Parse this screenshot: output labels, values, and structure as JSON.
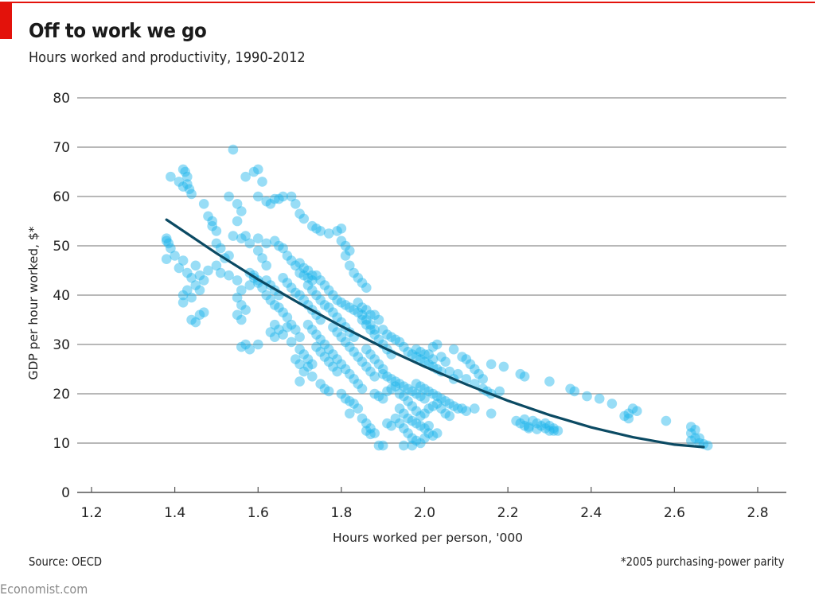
{
  "header": {
    "title": "Off to work we go",
    "subtitle": "Hours worked and productivity, 1990-2012"
  },
  "footer": {
    "source": "Source: OECD",
    "footnote": "*2005 purchasing-power parity",
    "brand": "Economist.com"
  },
  "colors": {
    "accent": "#e3120b",
    "points": "#1ab3ec",
    "trend": "#0b4a63",
    "grid": "#b8b8b8"
  },
  "chart_data": {
    "type": "scatter",
    "title": "Off to work we go",
    "subtitle": "Hours worked and productivity, 1990-2012",
    "xlabel": "Hours worked per person, '000",
    "ylabel": "GDP per hour worked, $*",
    "xlim": [
      1.2,
      2.8
    ],
    "ylim": [
      0,
      80
    ],
    "xticks": [
      "1.2",
      "1.4",
      "1.6",
      "1.8",
      "2.0",
      "2.2",
      "2.4",
      "2.6",
      "2.8"
    ],
    "yticks": [
      "0",
      "10",
      "20",
      "30",
      "40",
      "50",
      "60",
      "70",
      "80"
    ],
    "grid": "horizontal",
    "legend": "none",
    "trendline": {
      "type": "quadratic",
      "x_range": [
        1.38,
        2.67
      ],
      "points": [
        [
          1.38,
          55.3
        ],
        [
          1.5,
          48.5
        ],
        [
          1.6,
          43.2
        ],
        [
          1.7,
          38.3
        ],
        [
          1.8,
          33.7
        ],
        [
          1.9,
          29.4
        ],
        [
          2.0,
          25.5
        ],
        [
          2.1,
          21.9
        ],
        [
          2.2,
          18.6
        ],
        [
          2.3,
          15.7
        ],
        [
          2.4,
          13.2
        ],
        [
          2.5,
          11.2
        ],
        [
          2.6,
          9.7
        ],
        [
          2.67,
          9.2
        ]
      ]
    },
    "points": [
      [
        1.38,
        51.5
      ],
      [
        1.38,
        51
      ],
      [
        1.385,
        50.5
      ],
      [
        1.39,
        49.5
      ],
      [
        1.38,
        47.3
      ],
      [
        1.4,
        48
      ],
      [
        1.42,
        47
      ],
      [
        1.41,
        45.5
      ],
      [
        1.43,
        44.5
      ],
      [
        1.44,
        43.5
      ],
      [
        1.45,
        42
      ],
      [
        1.43,
        41
      ],
      [
        1.42,
        40
      ],
      [
        1.44,
        39.5
      ],
      [
        1.42,
        38.5
      ],
      [
        1.46,
        41
      ],
      [
        1.47,
        43
      ],
      [
        1.45,
        46
      ],
      [
        1.46,
        44
      ],
      [
        1.48,
        45
      ],
      [
        1.44,
        35
      ],
      [
        1.45,
        34.5
      ],
      [
        1.46,
        36
      ],
      [
        1.47,
        36.5
      ],
      [
        1.39,
        64
      ],
      [
        1.41,
        63
      ],
      [
        1.42,
        62
      ],
      [
        1.43,
        62.5
      ],
      [
        1.42,
        65.5
      ],
      [
        1.425,
        65
      ],
      [
        1.43,
        64
      ],
      [
        1.435,
        61.5
      ],
      [
        1.44,
        60.5
      ],
      [
        1.47,
        58.5
      ],
      [
        1.48,
        56
      ],
      [
        1.49,
        55
      ],
      [
        1.5,
        53
      ],
      [
        1.49,
        54
      ],
      [
        1.5,
        50.5
      ],
      [
        1.51,
        49.5
      ],
      [
        1.53,
        48
      ],
      [
        1.52,
        47.5
      ],
      [
        1.5,
        46
      ],
      [
        1.51,
        44.5
      ],
      [
        1.53,
        44
      ],
      [
        1.55,
        43
      ],
      [
        1.54,
        69.5
      ],
      [
        1.53,
        60
      ],
      [
        1.55,
        58.5
      ],
      [
        1.56,
        57
      ],
      [
        1.55,
        55
      ],
      [
        1.54,
        52
      ],
      [
        1.56,
        51.5
      ],
      [
        1.57,
        52
      ],
      [
        1.58,
        50.5
      ],
      [
        1.6,
        49
      ],
      [
        1.61,
        47.5
      ],
      [
        1.62,
        46
      ],
      [
        1.59,
        44
      ],
      [
        1.6,
        43
      ],
      [
        1.58,
        42
      ],
      [
        1.56,
        41
      ],
      [
        1.55,
        39.5
      ],
      [
        1.56,
        38
      ],
      [
        1.57,
        37
      ],
      [
        1.55,
        36
      ],
      [
        1.56,
        35
      ],
      [
        1.57,
        30
      ],
      [
        1.56,
        29.5
      ],
      [
        1.58,
        29
      ],
      [
        1.6,
        30
      ],
      [
        1.57,
        64
      ],
      [
        1.59,
        65
      ],
      [
        1.6,
        65.5
      ],
      [
        1.61,
        63
      ],
      [
        1.6,
        60
      ],
      [
        1.62,
        59
      ],
      [
        1.63,
        58.5
      ],
      [
        1.64,
        59.5
      ],
      [
        1.66,
        60
      ],
      [
        1.65,
        59.5
      ],
      [
        1.68,
        60
      ],
      [
        1.69,
        58.5
      ],
      [
        1.7,
        56.5
      ],
      [
        1.71,
        55.5
      ],
      [
        1.73,
        54
      ],
      [
        1.74,
        53.5
      ],
      [
        1.75,
        53
      ],
      [
        1.77,
        52.5
      ],
      [
        1.79,
        53
      ],
      [
        1.8,
        53.5
      ],
      [
        1.8,
        51
      ],
      [
        1.81,
        50
      ],
      [
        1.82,
        49
      ],
      [
        1.81,
        48
      ],
      [
        1.82,
        46
      ],
      [
        1.83,
        44.5
      ],
      [
        1.84,
        43.5
      ],
      [
        1.85,
        42.5
      ],
      [
        1.86,
        41.5
      ],
      [
        1.6,
        51.5
      ],
      [
        1.62,
        50.5
      ],
      [
        1.64,
        51
      ],
      [
        1.65,
        50
      ],
      [
        1.66,
        49.5
      ],
      [
        1.67,
        48
      ],
      [
        1.68,
        47
      ],
      [
        1.69,
        46
      ],
      [
        1.7,
        46.5
      ],
      [
        1.71,
        45.5
      ],
      [
        1.72,
        45
      ],
      [
        1.73,
        44
      ],
      [
        1.58,
        44.5
      ],
      [
        1.59,
        43.5
      ],
      [
        1.6,
        42.5
      ],
      [
        1.61,
        41.5
      ],
      [
        1.62,
        43
      ],
      [
        1.63,
        42
      ],
      [
        1.64,
        41
      ],
      [
        1.65,
        40
      ],
      [
        1.62,
        40
      ],
      [
        1.63,
        39
      ],
      [
        1.64,
        38
      ],
      [
        1.65,
        37.5
      ],
      [
        1.66,
        36.5
      ],
      [
        1.67,
        35.5
      ],
      [
        1.68,
        34
      ],
      [
        1.64,
        34
      ],
      [
        1.65,
        33
      ],
      [
        1.63,
        32.5
      ],
      [
        1.64,
        31.5
      ],
      [
        1.66,
        32
      ],
      [
        1.67,
        33.5
      ],
      [
        1.69,
        33
      ],
      [
        1.7,
        31.5
      ],
      [
        1.68,
        30.5
      ],
      [
        1.7,
        29
      ],
      [
        1.71,
        28
      ],
      [
        1.69,
        27
      ],
      [
        1.7,
        26
      ],
      [
        1.72,
        25.5
      ],
      [
        1.71,
        24.5
      ],
      [
        1.73,
        23.5
      ],
      [
        1.7,
        22.5
      ],
      [
        1.66,
        43.5
      ],
      [
        1.67,
        42.5
      ],
      [
        1.68,
        41.5
      ],
      [
        1.69,
        40.5
      ],
      [
        1.7,
        40
      ],
      [
        1.71,
        39
      ],
      [
        1.72,
        38
      ],
      [
        1.73,
        37
      ],
      [
        1.74,
        36
      ],
      [
        1.75,
        35
      ],
      [
        1.72,
        42
      ],
      [
        1.73,
        41
      ],
      [
        1.74,
        40
      ],
      [
        1.75,
        39
      ],
      [
        1.76,
        38
      ],
      [
        1.77,
        37.5
      ],
      [
        1.78,
        36.5
      ],
      [
        1.79,
        35.5
      ],
      [
        1.8,
        34.5
      ],
      [
        1.81,
        33.5
      ],
      [
        1.82,
        32.5
      ],
      [
        1.83,
        31.5
      ],
      [
        1.7,
        44.5
      ],
      [
        1.71,
        44
      ],
      [
        1.72,
        43.5
      ],
      [
        1.73,
        43
      ],
      [
        1.74,
        44
      ],
      [
        1.75,
        43
      ],
      [
        1.76,
        42
      ],
      [
        1.77,
        41
      ],
      [
        1.78,
        40
      ],
      [
        1.79,
        39
      ],
      [
        1.8,
        38.5
      ],
      [
        1.81,
        38
      ],
      [
        1.82,
        37.5
      ],
      [
        1.83,
        37
      ],
      [
        1.84,
        36.5
      ],
      [
        1.85,
        36
      ],
      [
        1.86,
        35
      ],
      [
        1.87,
        34
      ],
      [
        1.88,
        33
      ],
      [
        1.84,
        38.5
      ],
      [
        1.85,
        37.5
      ],
      [
        1.86,
        37
      ],
      [
        1.87,
        36
      ],
      [
        1.72,
        34
      ],
      [
        1.73,
        33
      ],
      [
        1.74,
        32
      ],
      [
        1.75,
        31
      ],
      [
        1.76,
        30
      ],
      [
        1.77,
        29
      ],
      [
        1.74,
        29.5
      ],
      [
        1.75,
        28.5
      ],
      [
        1.76,
        27.5
      ],
      [
        1.77,
        26.5
      ],
      [
        1.78,
        25.5
      ],
      [
        1.79,
        24.5
      ],
      [
        1.75,
        22
      ],
      [
        1.76,
        21
      ],
      [
        1.77,
        20.5
      ],
      [
        1.73,
        26
      ],
      [
        1.72,
        27
      ],
      [
        1.78,
        28
      ],
      [
        1.79,
        27
      ],
      [
        1.8,
        26
      ],
      [
        1.81,
        25
      ],
      [
        1.82,
        24
      ],
      [
        1.83,
        23
      ],
      [
        1.84,
        22
      ],
      [
        1.85,
        21
      ],
      [
        1.78,
        33.5
      ],
      [
        1.79,
        32.5
      ],
      [
        1.8,
        31.5
      ],
      [
        1.81,
        30.5
      ],
      [
        1.82,
        29.5
      ],
      [
        1.83,
        28.5
      ],
      [
        1.84,
        27.5
      ],
      [
        1.85,
        26.5
      ],
      [
        1.86,
        25.5
      ],
      [
        1.87,
        24.5
      ],
      [
        1.88,
        23.5
      ],
      [
        1.86,
        29
      ],
      [
        1.87,
        28
      ],
      [
        1.88,
        27
      ],
      [
        1.89,
        26
      ],
      [
        1.9,
        25
      ],
      [
        1.85,
        35
      ],
      [
        1.86,
        34
      ],
      [
        1.87,
        33
      ],
      [
        1.88,
        32
      ],
      [
        1.89,
        31
      ],
      [
        1.9,
        30
      ],
      [
        1.91,
        29
      ],
      [
        1.92,
        28
      ],
      [
        1.89,
        35
      ],
      [
        1.88,
        36
      ],
      [
        1.9,
        33
      ],
      [
        1.91,
        32
      ],
      [
        1.92,
        31.5
      ],
      [
        1.93,
        31
      ],
      [
        1.94,
        30.5
      ],
      [
        1.95,
        29.5
      ],
      [
        1.96,
        28.5
      ],
      [
        1.97,
        28
      ],
      [
        1.98,
        27.5
      ],
      [
        1.99,
        27
      ],
      [
        2.0,
        26.5
      ],
      [
        2.01,
        26
      ],
      [
        2.02,
        25.5
      ],
      [
        2.03,
        25
      ],
      [
        2.04,
        24.5
      ],
      [
        1.8,
        20
      ],
      [
        1.81,
        19
      ],
      [
        1.82,
        18.5
      ],
      [
        1.83,
        18
      ],
      [
        1.84,
        17
      ],
      [
        1.82,
        16
      ],
      [
        1.85,
        15
      ],
      [
        1.86,
        14
      ],
      [
        1.87,
        13
      ],
      [
        1.88,
        12
      ],
      [
        1.86,
        12.5
      ],
      [
        1.87,
        11.8
      ],
      [
        1.89,
        9.5
      ],
      [
        1.9,
        9.5
      ],
      [
        1.91,
        14
      ],
      [
        1.92,
        13.5
      ],
      [
        1.93,
        15
      ],
      [
        1.94,
        14
      ],
      [
        1.95,
        13
      ],
      [
        1.96,
        12
      ],
      [
        1.97,
        11
      ],
      [
        1.98,
        10.5
      ],
      [
        1.95,
        9.5
      ],
      [
        1.97,
        9.5
      ],
      [
        1.99,
        10
      ],
      [
        2.0,
        11
      ],
      [
        2.01,
        12
      ],
      [
        2.02,
        11.5
      ],
      [
        2.03,
        12
      ],
      [
        1.88,
        20
      ],
      [
        1.89,
        19.5
      ],
      [
        1.9,
        19
      ],
      [
        1.91,
        20.5
      ],
      [
        1.92,
        21
      ],
      [
        1.93,
        21.5
      ],
      [
        1.94,
        20
      ],
      [
        1.95,
        19.5
      ],
      [
        1.96,
        18.5
      ],
      [
        1.97,
        17.5
      ],
      [
        1.98,
        16.5
      ],
      [
        1.99,
        15.5
      ],
      [
        2.0,
        16
      ],
      [
        2.01,
        17
      ],
      [
        2.02,
        17.5
      ],
      [
        2.03,
        18
      ],
      [
        2.04,
        17
      ],
      [
        2.05,
        16
      ],
      [
        2.06,
        15.5
      ],
      [
        1.94,
        17
      ],
      [
        1.95,
        16
      ],
      [
        1.96,
        15
      ],
      [
        1.97,
        14.5
      ],
      [
        1.98,
        14
      ],
      [
        1.99,
        13.5
      ],
      [
        2.0,
        13
      ],
      [
        2.01,
        13.5
      ],
      [
        1.9,
        24
      ],
      [
        1.91,
        23.5
      ],
      [
        1.92,
        23
      ],
      [
        1.93,
        22.5
      ],
      [
        1.94,
        22
      ],
      [
        1.95,
        21.5
      ],
      [
        1.96,
        21
      ],
      [
        1.97,
        20.5
      ],
      [
        1.98,
        20
      ],
      [
        1.99,
        19.5
      ],
      [
        2.0,
        19
      ],
      [
        1.98,
        22
      ],
      [
        1.99,
        21.5
      ],
      [
        2.0,
        21
      ],
      [
        2.01,
        20.5
      ],
      [
        2.02,
        20
      ],
      [
        2.03,
        19.5
      ],
      [
        2.04,
        19
      ],
      [
        2.05,
        18.5
      ],
      [
        2.06,
        18
      ],
      [
        2.07,
        17.5
      ],
      [
        2.08,
        17
      ],
      [
        1.98,
        29
      ],
      [
        1.99,
        28.5
      ],
      [
        2.0,
        28
      ],
      [
        2.01,
        28
      ],
      [
        2.02,
        29.5
      ],
      [
        2.03,
        30
      ],
      [
        2.02,
        27
      ],
      [
        2.04,
        27.5
      ],
      [
        2.05,
        26.5
      ],
      [
        2.06,
        24.5
      ],
      [
        2.07,
        23
      ],
      [
        2.08,
        24
      ],
      [
        2.07,
        29
      ],
      [
        2.09,
        27.5
      ],
      [
        2.1,
        27
      ],
      [
        2.11,
        26
      ],
      [
        2.12,
        25
      ],
      [
        2.13,
        24
      ],
      [
        2.14,
        23
      ],
      [
        2.12,
        22
      ],
      [
        2.1,
        23
      ],
      [
        2.09,
        17
      ],
      [
        2.1,
        16.5
      ],
      [
        2.12,
        17
      ],
      [
        2.14,
        21
      ],
      [
        2.15,
        20.5
      ],
      [
        2.16,
        20
      ],
      [
        2.18,
        20.5
      ],
      [
        2.16,
        16
      ],
      [
        2.16,
        26
      ],
      [
        2.19,
        25.5
      ],
      [
        2.23,
        24
      ],
      [
        2.24,
        23.5
      ],
      [
        2.3,
        22.5
      ],
      [
        2.35,
        21
      ],
      [
        2.36,
        20.5
      ],
      [
        2.39,
        19.5
      ],
      [
        2.42,
        19
      ],
      [
        2.45,
        18
      ],
      [
        2.48,
        15.5
      ],
      [
        2.49,
        16
      ],
      [
        2.5,
        17
      ],
      [
        2.51,
        16.5
      ],
      [
        2.49,
        15
      ],
      [
        2.58,
        14.5
      ],
      [
        2.22,
        14.5
      ],
      [
        2.23,
        14
      ],
      [
        2.24,
        13.5
      ],
      [
        2.25,
        13
      ],
      [
        2.24,
        14.8
      ],
      [
        2.26,
        14.5
      ],
      [
        2.27,
        14
      ],
      [
        2.28,
        13.5
      ],
      [
        2.29,
        13
      ],
      [
        2.3,
        12.5
      ],
      [
        2.31,
        12.5
      ],
      [
        2.32,
        12.5
      ],
      [
        2.27,
        12.8
      ],
      [
        2.25,
        13.3
      ],
      [
        2.29,
        14
      ],
      [
        2.3,
        13.5
      ],
      [
        2.31,
        13
      ],
      [
        2.64,
        13.3
      ],
      [
        2.65,
        12.7
      ],
      [
        2.64,
        12
      ],
      [
        2.65,
        11
      ],
      [
        2.64,
        10.5
      ],
      [
        2.66,
        11
      ],
      [
        2.66,
        10
      ],
      [
        2.67,
        9.8
      ],
      [
        2.68,
        9.5
      ]
    ]
  }
}
